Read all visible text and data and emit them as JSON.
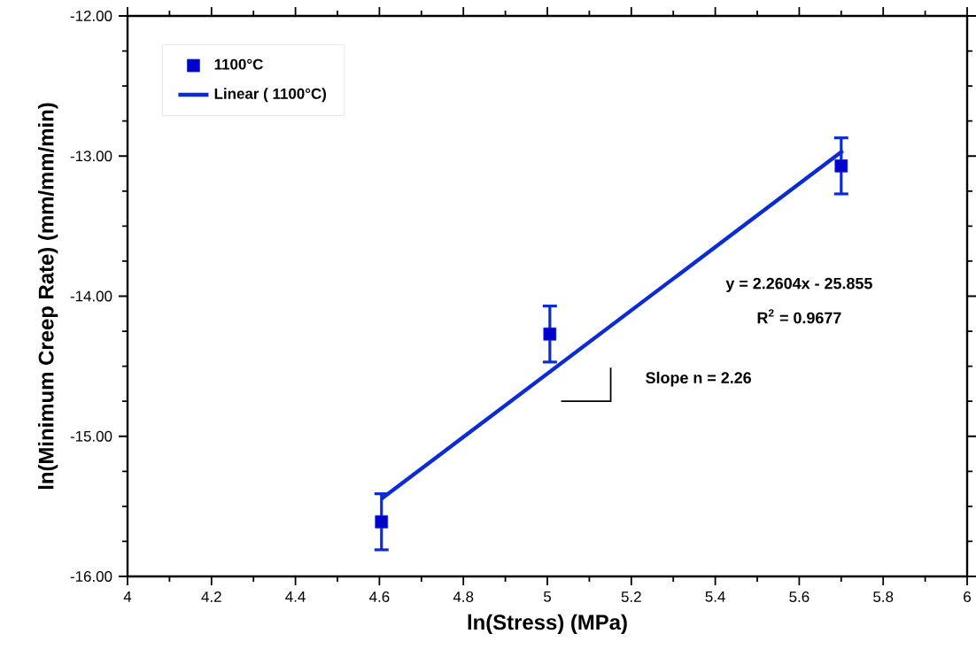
{
  "chart_data": {
    "type": "scatter",
    "xlabel": "ln(Stress) (MPa)",
    "ylabel": "ln(Minimum Creep Rate) (mm/mm/min)",
    "series": [
      {
        "name": "1100°C",
        "type": "scatter",
        "color": "#0a2bd6",
        "marker": "square",
        "x": [
          4.605,
          5.006,
          5.7
        ],
        "values": [
          -15.61,
          -14.27,
          -13.07
        ],
        "errors": [
          0.2,
          0.2,
          0.2
        ]
      },
      {
        "name": "Linear ( 1100°C)",
        "type": "line",
        "color": "#0a2bd6",
        "marker": "none",
        "line_style": "solid",
        "x": [
          4.605,
          5.704
        ],
        "values": [
          -15.446,
          -12.962
        ]
      }
    ],
    "annotations": [
      "y = 2.2604x - 25.855",
      "R$^{2}$ = 0.9677",
      "Slope n = 2.26"
    ],
    "xlim": [
      4,
      6
    ],
    "xticks": [
      4,
      4.2,
      4.4,
      4.6,
      4.8,
      5,
      5.2,
      5.4,
      5.6,
      5.8,
      6
    ],
    "ylim": [
      -16,
      -12
    ],
    "yticks": [
      {
        "value": -16,
        "label": "-16.00"
      },
      {
        "value": -15,
        "label": "-15.00"
      },
      {
        "value": -14,
        "label": "-14.00"
      },
      {
        "value": -13,
        "label": "-13.00"
      },
      {
        "value": -12,
        "label": "-12.00"
      }
    ],
    "grid": false,
    "legend": "top left"
  }
}
